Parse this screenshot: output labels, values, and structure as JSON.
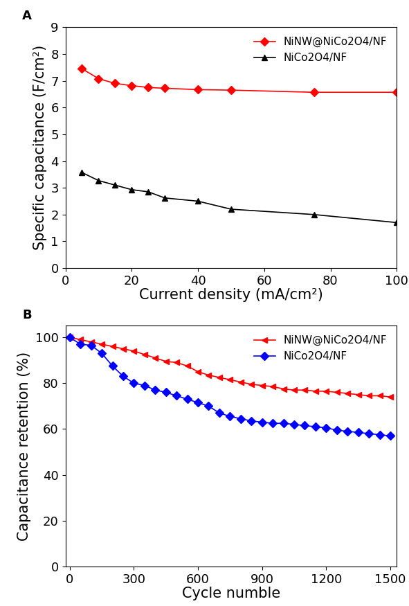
{
  "chart_data": [
    {
      "type": "line",
      "title": "A",
      "x_label": "Current density (mA/cm²)",
      "y_label": "Specific capacitance (F/cm²)",
      "xlim": [
        0,
        100
      ],
      "xticks": [
        0,
        20,
        40,
        60,
        80,
        100
      ],
      "ylim": [
        0,
        9
      ],
      "yticks": [
        0,
        1,
        2,
        3,
        4,
        5,
        6,
        7,
        8,
        9
      ],
      "legend": "upper right",
      "x": [
        5,
        10,
        15,
        20,
        25,
        30,
        40,
        50,
        75,
        100
      ],
      "series": [
        {
          "name": "NiNW@NiCo2O4/NF",
          "color": "#ff0000",
          "marker": "D",
          "values": [
            7.45,
            7.08,
            6.9,
            6.82,
            6.75,
            6.72,
            6.67,
            6.65,
            6.57,
            6.57
          ]
        },
        {
          "name": "NiCo2O4/NF",
          "color": "#000000",
          "marker": "^",
          "values": [
            3.57,
            3.27,
            3.1,
            2.93,
            2.85,
            2.62,
            2.5,
            2.2,
            2.0,
            1.7
          ]
        }
      ]
    },
    {
      "type": "line",
      "title": "B",
      "x_label": "Cycle numble",
      "y_label": "Capacitance retention (%)",
      "xlim": [
        -20,
        1530
      ],
      "xticks": [
        0,
        300,
        600,
        900,
        1200,
        1500
      ],
      "ylim": [
        0,
        105
      ],
      "yticks": [
        0,
        20,
        40,
        60,
        80,
        100
      ],
      "legend": "upper right",
      "x": [
        0,
        50,
        100,
        150,
        200,
        250,
        300,
        350,
        400,
        450,
        500,
        550,
        600,
        650,
        700,
        750,
        800,
        850,
        900,
        950,
        1000,
        1050,
        1100,
        1150,
        1200,
        1250,
        1300,
        1350,
        1400,
        1450,
        1500
      ],
      "series": [
        {
          "name": "NiNW@NiCo2O4/NF",
          "color": "#ff0000",
          "marker": "<",
          "values": [
            100,
            99,
            98,
            97,
            96,
            95,
            94,
            92.5,
            91,
            89.5,
            89,
            87.5,
            85,
            83.5,
            82.5,
            81.5,
            80.5,
            79.5,
            79,
            78.5,
            77.5,
            77,
            77,
            76.5,
            76.5,
            76,
            75.5,
            75,
            74.5,
            74.5,
            74
          ]
        },
        {
          "name": "NiCo2O4/NF",
          "color": "#0000ff",
          "marker": "D",
          "values": [
            100,
            97,
            96.5,
            93,
            87.5,
            83,
            80,
            79,
            77,
            76,
            74.5,
            73,
            71.5,
            70,
            67,
            65.5,
            64.5,
            63.5,
            63,
            62.5,
            62.5,
            62,
            61.5,
            61,
            60.5,
            59.5,
            59,
            58.5,
            58,
            57.5,
            57
          ]
        }
      ]
    }
  ]
}
